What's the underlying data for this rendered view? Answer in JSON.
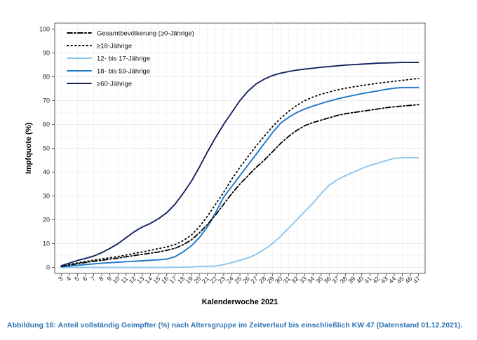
{
  "chart_data": {
    "type": "line",
    "title": "",
    "xlabel": "Kalenderwoche 2021",
    "ylabel": "Impfquote (%)",
    "ylim": [
      0,
      100
    ],
    "yticks": [
      0,
      10,
      20,
      30,
      40,
      50,
      60,
      70,
      80,
      90,
      100
    ],
    "x": [
      3,
      4,
      5,
      6,
      7,
      8,
      9,
      10,
      11,
      12,
      13,
      14,
      15,
      16,
      17,
      18,
      19,
      20,
      21,
      22,
      23,
      24,
      25,
      26,
      27,
      28,
      29,
      30,
      31,
      32,
      33,
      34,
      35,
      36,
      37,
      38,
      39,
      40,
      41,
      42,
      43,
      44,
      45,
      46,
      47
    ],
    "grid": true,
    "legend_position": "top-left",
    "series": [
      {
        "name": "Gesamtbevölkerung (≥0-Jährige)",
        "color": "#000000",
        "dash": "dashdot",
        "values": [
          0.5,
          1.0,
          1.6,
          2.1,
          2.6,
          3.0,
          3.5,
          3.9,
          4.5,
          5.0,
          5.5,
          6.0,
          6.5,
          7.2,
          8.0,
          9.5,
          11.5,
          14.5,
          18.0,
          22.0,
          26.5,
          31.0,
          35.0,
          38.5,
          42.0,
          45.0,
          48.5,
          52.0,
          55.0,
          57.5,
          59.5,
          60.8,
          61.8,
          62.8,
          63.8,
          64.5,
          65.0,
          65.5,
          66.0,
          66.5,
          67.0,
          67.4,
          67.7,
          68.0,
          68.3
        ]
      },
      {
        "name": "≥18-Jährige",
        "color": "#000000",
        "dash": "dotted",
        "values": [
          0.6,
          1.2,
          1.9,
          2.5,
          3.1,
          3.6,
          4.1,
          4.6,
          5.2,
          5.9,
          6.5,
          7.2,
          7.9,
          8.6,
          9.6,
          11.2,
          13.5,
          17.0,
          21.5,
          26.5,
          31.5,
          37.0,
          42.0,
          46.5,
          51.0,
          55.0,
          59.0,
          62.5,
          65.5,
          68.0,
          70.0,
          71.5,
          72.7,
          73.6,
          74.5,
          75.2,
          75.8,
          76.3,
          76.8,
          77.3,
          77.7,
          78.1,
          78.5,
          78.9,
          79.3
        ]
      },
      {
        "name": "12- bis 17-Jährige",
        "color": "#8ec5ea",
        "dash": "solid",
        "values": [
          0,
          0,
          0,
          0,
          0,
          0,
          0,
          0,
          0,
          0,
          0,
          0,
          0,
          0,
          0.1,
          0.1,
          0.2,
          0.4,
          0.5,
          0.6,
          1.2,
          2.0,
          3.0,
          4.0,
          5.5,
          7.5,
          10.0,
          13.0,
          16.5,
          20.0,
          23.5,
          27.0,
          31.0,
          34.5,
          36.8,
          38.5,
          40.0,
          41.5,
          42.8,
          43.8,
          44.8,
          45.8,
          46.0,
          46.0,
          46.0
        ]
      },
      {
        "name": "18- bis 59-Jährige",
        "color": "#1f78c8",
        "dash": "solid",
        "values": [
          0.3,
          0.6,
          0.9,
          1.2,
          1.5,
          1.8,
          2.0,
          2.2,
          2.4,
          2.6,
          2.8,
          3.0,
          3.2,
          3.5,
          4.5,
          6.5,
          9.0,
          12.5,
          17.0,
          23.0,
          29.5,
          34.0,
          38.5,
          43.0,
          47.5,
          52.0,
          56.5,
          60.5,
          63.0,
          65.0,
          66.5,
          67.7,
          68.8,
          69.8,
          70.7,
          71.5,
          72.2,
          72.9,
          73.5,
          74.1,
          74.7,
          75.2,
          75.5,
          75.5,
          75.5
        ]
      },
      {
        "name": "≥60-Jährige",
        "color": "#14235f",
        "dash": "solid",
        "values": [
          0.7,
          1.8,
          2.9,
          3.8,
          4.8,
          6.2,
          8.0,
          10.0,
          12.5,
          15.0,
          17.0,
          18.5,
          20.5,
          23.0,
          26.5,
          31.0,
          36.0,
          42.0,
          48.5,
          54.5,
          60.0,
          65.0,
          70.0,
          74.0,
          77.0,
          79.0,
          80.5,
          81.5,
          82.2,
          82.8,
          83.2,
          83.6,
          84.0,
          84.3,
          84.6,
          84.9,
          85.1,
          85.3,
          85.5,
          85.7,
          85.8,
          85.9,
          86.0,
          86.0,
          86.0
        ]
      }
    ]
  },
  "caption": "Abbildung 16: Anteil vollständig Geimpfter (%) nach Altersgruppe im Zeitverlauf bis einschließlich KW 47 (Datenstand 01.12.2021)."
}
